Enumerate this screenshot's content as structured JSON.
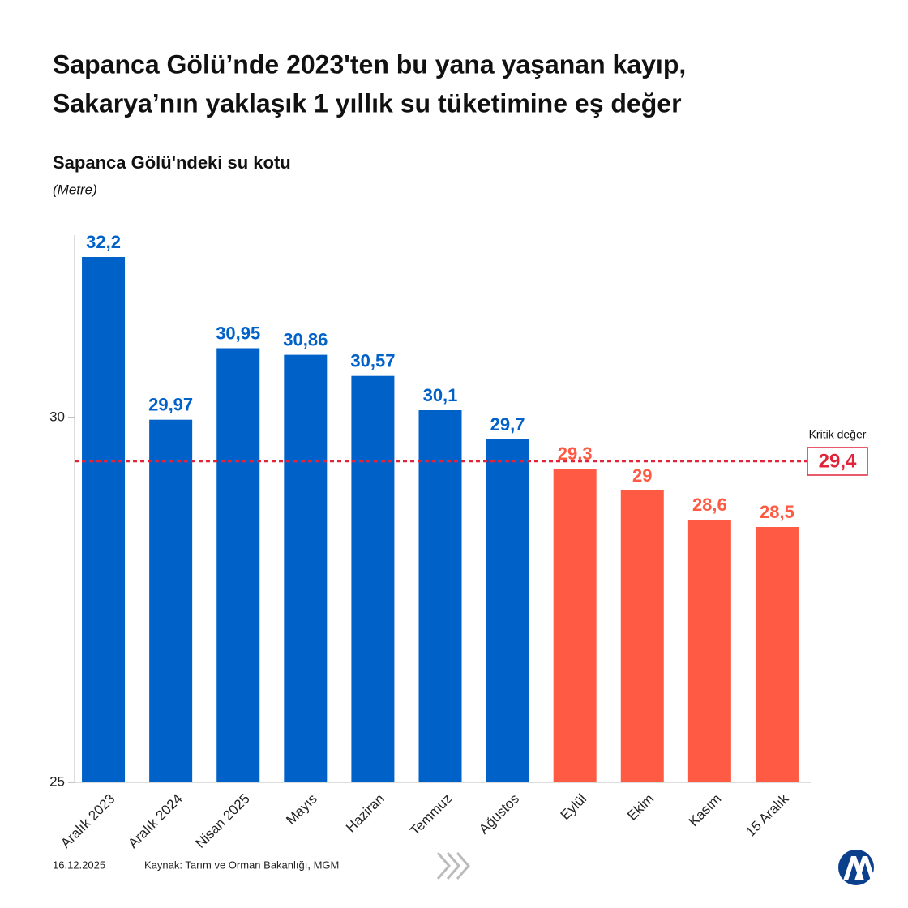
{
  "chart_data": {
    "type": "bar",
    "title": [
      "Sapanca Gölü’nde 2023'ten bu yana yaşanan kayıp,",
      "Sakarya’nın yaklaşık 1 yıllık su tüketimine eş değer"
    ],
    "subtitle": "Sapanca Gölü'ndeki su kotu",
    "y_label": "(Metre)",
    "categories": [
      "Aralık 2023",
      "Aralık 2024",
      "Nisan 2025",
      "Mayıs",
      "Haziran",
      "Temmuz",
      "Ağustos",
      "Eylül",
      "Ekim",
      "Kasım",
      "15 Aralık"
    ],
    "values": [
      32.2,
      29.97,
      30.95,
      30.86,
      30.57,
      30.1,
      29.7,
      29.3,
      29,
      28.6,
      28.5
    ],
    "value_labels": [
      "32,2",
      "29,97",
      "30,95",
      "30,86",
      "30,57",
      "30,1",
      "29,7",
      "29,3",
      "29",
      "28,6",
      "28,5"
    ],
    "colors": [
      "#0061c8",
      "#0061c8",
      "#0061c8",
      "#0061c8",
      "#0061c8",
      "#0061c8",
      "#0061c8",
      "#ff5a43",
      "#ff5a43",
      "#ff5a43",
      "#ff5a43"
    ],
    "ylim": [
      25,
      32.5
    ],
    "yticks": [
      25,
      30
    ],
    "reference_line": {
      "value": 29.4,
      "label": "29,4",
      "title": "Kritik değer",
      "color": "#e0243a"
    },
    "date": "16.12.2025",
    "source": "Kaynak: Tarım ve Orman Bakanlığı, MGM"
  }
}
